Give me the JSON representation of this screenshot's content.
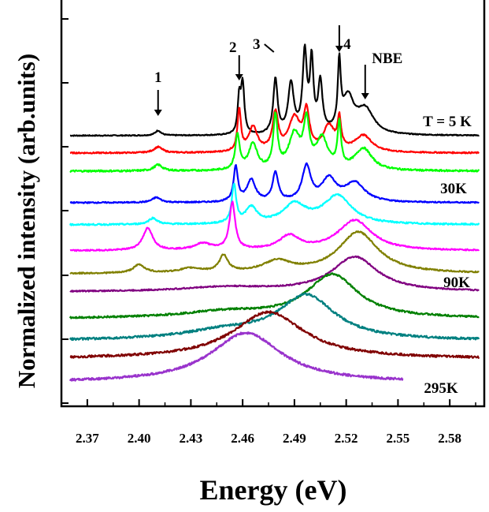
{
  "chart_data": {
    "type": "line",
    "title": "",
    "xlabel": "Energy (eV)",
    "ylabel": "Normalized intensity (arb.units)",
    "xlim": [
      2.355,
      2.6
    ],
    "xticks": [
      "2.37",
      "2.40",
      "2.43",
      "2.46",
      "2.49",
      "2.52",
      "2.55",
      "2.58"
    ],
    "yticks_labeled": false,
    "grid": false,
    "legend": "none",
    "annotations": [
      {
        "text": "1",
        "x": 2.411
      },
      {
        "text": "2",
        "x": 2.458
      },
      {
        "text": "3",
        "x": 2.479
      },
      {
        "text": "4",
        "x": 2.516
      },
      {
        "text": "NBE",
        "x": 2.531
      }
    ],
    "curve_labels": [
      "T = 5 K",
      "30K",
      "90K",
      "295K"
    ],
    "series": [
      {
        "color": "#000000",
        "x_range": [
          2.36,
          2.597
        ],
        "baseline": 0.0,
        "height": 1.0,
        "peaks": [
          [
            2.411,
            0.05,
            0.002
          ],
          [
            2.458,
            0.35,
            0.001
          ],
          [
            2.46,
            0.5,
            0.0012
          ],
          [
            2.479,
            0.55,
            0.0015
          ],
          [
            2.488,
            0.5,
            0.002
          ],
          [
            2.496,
            0.8,
            0.0015
          ],
          [
            2.5,
            0.7,
            0.0012
          ],
          [
            2.505,
            0.5,
            0.0015
          ],
          [
            2.516,
            0.65,
            0.001
          ],
          [
            2.521,
            0.35,
            0.004
          ],
          [
            2.531,
            0.25,
            0.006
          ]
        ],
        "noise": 0.005
      },
      {
        "color": "#ff0000",
        "x_range": [
          2.36,
          2.597
        ],
        "baseline": 0.0,
        "height": 1.0,
        "peaks": [
          [
            2.411,
            0.07,
            0.003
          ],
          [
            2.458,
            0.5,
            0.0012
          ],
          [
            2.466,
            0.3,
            0.003
          ],
          [
            2.479,
            0.45,
            0.002
          ],
          [
            2.49,
            0.4,
            0.004
          ],
          [
            2.497,
            0.45,
            0.002
          ],
          [
            2.51,
            0.3,
            0.004
          ],
          [
            2.516,
            0.35,
            0.0012
          ],
          [
            2.53,
            0.2,
            0.006
          ]
        ],
        "noise": 0.008
      },
      {
        "color": "#00ff00",
        "x_range": [
          2.36,
          2.597
        ],
        "baseline": 0.0,
        "height": 1.0,
        "peaks": [
          [
            2.411,
            0.07,
            0.003
          ],
          [
            2.457,
            0.4,
            0.0015
          ],
          [
            2.466,
            0.3,
            0.003
          ],
          [
            2.479,
            0.6,
            0.0015
          ],
          [
            2.49,
            0.4,
            0.004
          ],
          [
            2.497,
            0.5,
            0.002
          ],
          [
            2.506,
            0.35,
            0.004
          ],
          [
            2.516,
            0.5,
            0.0012
          ],
          [
            2.53,
            0.25,
            0.006
          ]
        ],
        "noise": 0.01
      },
      {
        "color": "#0000ff",
        "x_range": [
          2.36,
          2.597
        ],
        "baseline": 0.0,
        "height": 1.0,
        "peaks": [
          [
            2.41,
            0.08,
            0.003
          ],
          [
            2.456,
            0.55,
            0.0015
          ],
          [
            2.465,
            0.35,
            0.003
          ],
          [
            2.479,
            0.45,
            0.002
          ],
          [
            2.497,
            0.55,
            0.003
          ],
          [
            2.51,
            0.35,
            0.005
          ],
          [
            2.525,
            0.3,
            0.007
          ]
        ],
        "noise": 0.01
      },
      {
        "color": "#00ffff",
        "x_range": [
          2.36,
          2.597
        ],
        "baseline": 0.0,
        "height": 1.0,
        "peaks": [
          [
            2.408,
            0.1,
            0.003
          ],
          [
            2.455,
            0.6,
            0.0015
          ],
          [
            2.465,
            0.25,
            0.004
          ],
          [
            2.49,
            0.3,
            0.008
          ],
          [
            2.515,
            0.45,
            0.01
          ]
        ],
        "noise": 0.012
      },
      {
        "color": "#ff00ff",
        "x_range": [
          2.36,
          2.597
        ],
        "baseline": 0.0,
        "height": 1.0,
        "peaks": [
          [
            2.405,
            0.4,
            0.0035
          ],
          [
            2.437,
            0.12,
            0.006
          ],
          [
            2.454,
            0.85,
            0.002
          ],
          [
            2.487,
            0.25,
            0.007
          ],
          [
            2.525,
            0.55,
            0.012
          ]
        ],
        "noise": 0.012
      },
      {
        "color": "#808000",
        "x_range": [
          2.36,
          2.597
        ],
        "baseline": 0.0,
        "height": 1.0,
        "peaks": [
          [
            2.4,
            0.15,
            0.004
          ],
          [
            2.43,
            0.08,
            0.008
          ],
          [
            2.449,
            0.3,
            0.003
          ],
          [
            2.48,
            0.2,
            0.01
          ],
          [
            2.527,
            0.75,
            0.014
          ]
        ],
        "noise": 0.012
      },
      {
        "color": "#800080",
        "x_range": [
          2.36,
          2.597
        ],
        "baseline": 0.0,
        "height": 1.0,
        "peaks": [
          [
            2.45,
            0.1,
            0.03
          ],
          [
            2.525,
            0.8,
            0.016
          ]
        ],
        "noise": 0.015
      },
      {
        "color": "#008000",
        "x_range": [
          2.36,
          2.597
        ],
        "baseline": 0.0,
        "height": 1.0,
        "peaks": [
          [
            2.45,
            0.12,
            0.03
          ],
          [
            2.512,
            0.85,
            0.018
          ]
        ],
        "noise": 0.018
      },
      {
        "color": "#008080",
        "x_range": [
          2.36,
          2.597
        ],
        "baseline": 0.0,
        "height": 1.0,
        "peaks": [
          [
            2.45,
            0.15,
            0.03
          ],
          [
            2.497,
            0.8,
            0.02
          ]
        ],
        "noise": 0.02
      },
      {
        "color": "#800000",
        "x_range": [
          2.36,
          2.597
        ],
        "baseline": 0.0,
        "height": 1.0,
        "peaks": [
          [
            2.475,
            0.85,
            0.025
          ]
        ],
        "noise": 0.02
      },
      {
        "color": "#9933cc",
        "x_range": [
          2.36,
          2.553
        ],
        "baseline": 0.0,
        "height": 1.0,
        "peaks": [
          [
            2.462,
            0.9,
            0.025
          ]
        ],
        "noise": 0.02
      }
    ]
  }
}
